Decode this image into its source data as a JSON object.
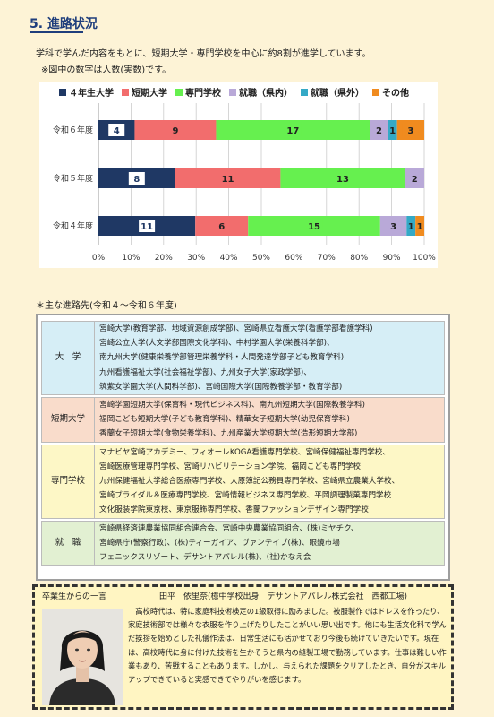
{
  "section": {
    "title": "5. 進路状況",
    "intro": "学科で学んだ内容をもとに、短期大学・専門学校を中心に約8割が進学しています。",
    "note": "※図中の数字は人数(実数)です。"
  },
  "chart_data": {
    "type": "bar",
    "orientation": "horizontal",
    "stacked": "percent",
    "categories": [
      "令和６年度",
      "令和５年度",
      "令和４年度"
    ],
    "series": [
      {
        "name": "４年生大学",
        "color": "#1f3864",
        "values": [
          4,
          8,
          11
        ]
      },
      {
        "name": "短期大学",
        "color": "#f26d6d",
        "values": [
          9,
          11,
          6
        ]
      },
      {
        "name": "専門学校",
        "color": "#66f04f",
        "values": [
          17,
          13,
          15
        ]
      },
      {
        "name": "就職（県内）",
        "color": "#b9a9d8",
        "values": [
          2,
          2,
          3
        ]
      },
      {
        "name": "就職（県外）",
        "color": "#34a9c6",
        "values": [
          1,
          0,
          1
        ]
      },
      {
        "name": "その他",
        "color": "#f08b1f",
        "values": [
          3,
          0,
          1
        ]
      }
    ],
    "xlim": [
      0,
      100
    ],
    "xticks": [
      "0%",
      "10%",
      "20%",
      "30%",
      "40%",
      "50%",
      "60%",
      "70%",
      "80%",
      "90%",
      "100%"
    ],
    "grid": true,
    "legend": "top"
  },
  "destinations": {
    "title": "＊主な進路先(令和４～令和６年度)",
    "rows": [
      {
        "category": "大　学",
        "lines": [
          "宮崎大学(教育学部、地域資源創成学部)、宮崎県立看護大学(看護学部看護学科)",
          "宮崎公立大学(人文学部国際文化学科)、中村学園大学(栄養科学部)、",
          "南九州大学(健康栄養学部管理栄養学科・人間発達学部子ども教育学科)",
          "九州看護福祉大学(社会福祉学部)、九州女子大学(家政学部)、",
          "筑紫女学園大学(人間科学部)、宮崎国際大学(国際教養学部・教育学部)"
        ]
      },
      {
        "category": "短期大学",
        "lines": [
          "宮崎学園短期大学(保育科・現代ビジネス科)、南九州短期大学(国際教養学科)",
          "福岡こども短期大学(子ども教育学科)、精華女子短期大学(幼児保育学科)",
          "香蘭女子短期大学(食物栄養学科)、九州産業大学短期大学(造形短期大学部)"
        ]
      },
      {
        "category": "専門学校",
        "lines": [
          "マナビヤ宮崎アカデミー、フィオーレKOGA看護専門学校、宮崎保健福祉専門学校、",
          "宮崎医療管理専門学校、宮崎リハビリテーション学院、福岡こども専門学校",
          "九州保健福祉大学総合医療専門学校、大原簿記公務員専門学校、宮崎県立農業大学校、",
          "宮崎ブライダル＆医療専門学校、宮崎情報ビジネス専門学校、平岡調理製菓専門学校",
          "文化服装学院東京校、東京服飾専門学校、香蘭ファッションデザイン専門学校"
        ]
      },
      {
        "category": "就　職",
        "lines": [
          "宮崎県経済連農業協同組合連合会、宮崎中央農業協同組合、(株)ミヤチク、",
          "宮崎県庁(警察行政)、(株)ティーガイア、ヴァンテイブ(株)、眼鏡市場",
          "フェニックスリゾート、デサントアパレル(株)、(社)かなえ会"
        ]
      }
    ]
  },
  "message": {
    "label": "卒業生からの一言",
    "person": "田平　依里奈(檍中学校出身　デサントアパレル株式会社　西都工場)",
    "text": "　高校時代は、特に家庭科技術検定の1級取得に励みました。被服製作ではドレスを作ったり、家庭技術部では様々な衣服を作り上げたりしたことがいい思い出です。他にも生活文化科で学んだ挨拶を始めとした礼儀作法は、日常生活にも活かせており今後も続けていきたいです。現在は、高校時代に身に付けた技術を生かそうと県内の縫製工場で勤務しています。仕事は難しい作業もあり、苦戦することもあります。しかし、与えられた課題をクリアしたとき、自分がスキルアップできていると実感できてやりがいを感じます。"
  }
}
